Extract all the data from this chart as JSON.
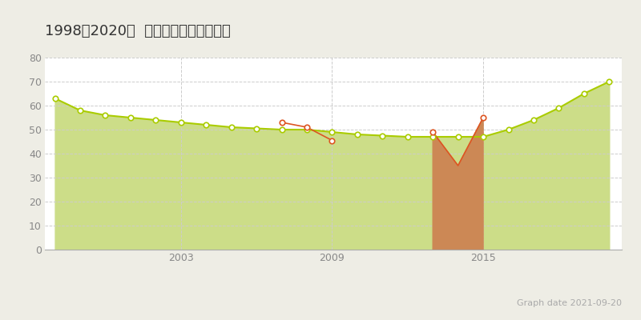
{
  "title": "1998～2020年  那覇市田原の地価推移",
  "background_color": "#eeede5",
  "plot_bg_color": "#ffffff",
  "green_line_years": [
    1998,
    1999,
    2000,
    2001,
    2002,
    2003,
    2004,
    2005,
    2006,
    2007,
    2008,
    2009,
    2010,
    2011,
    2012,
    2013,
    2014,
    2015,
    2016,
    2017,
    2018,
    2019,
    2020
  ],
  "green_line_values": [
    63,
    58,
    56,
    55,
    54,
    53,
    52,
    51,
    50.5,
    50,
    50,
    49,
    48,
    47.5,
    47,
    47,
    47,
    47,
    50,
    54,
    59,
    65,
    70
  ],
  "orange_scatter_years": [
    2007,
    2008,
    2009,
    2013,
    2015
  ],
  "orange_scatter_values": [
    53,
    51,
    45.5,
    49,
    55
  ],
  "orange_fill_years": [
    2013,
    2014,
    2015
  ],
  "orange_fill_values": [
    49,
    35,
    55
  ],
  "green_line_color": "#aacc00",
  "green_fill_color": "#ccdd88",
  "orange_line_color": "#dd5522",
  "orange_fill_color": "#cc8855",
  "marker_facecolor": "#ffffff",
  "marker_edge_green": "#aacc00",
  "marker_edge_orange": "#dd5522",
  "ylim": [
    0,
    80
  ],
  "yticks": [
    0,
    10,
    20,
    30,
    40,
    50,
    60,
    70,
    80
  ],
  "xlim_start": 1997.6,
  "xlim_end": 2020.5,
  "xtick_years": [
    2003,
    2009,
    2015
  ],
  "grid_color": "#cccccc",
  "graph_date": "Graph date 2021-09-20",
  "title_fontsize": 13,
  "axis_fontsize": 9,
  "legend_fontsize": 9
}
